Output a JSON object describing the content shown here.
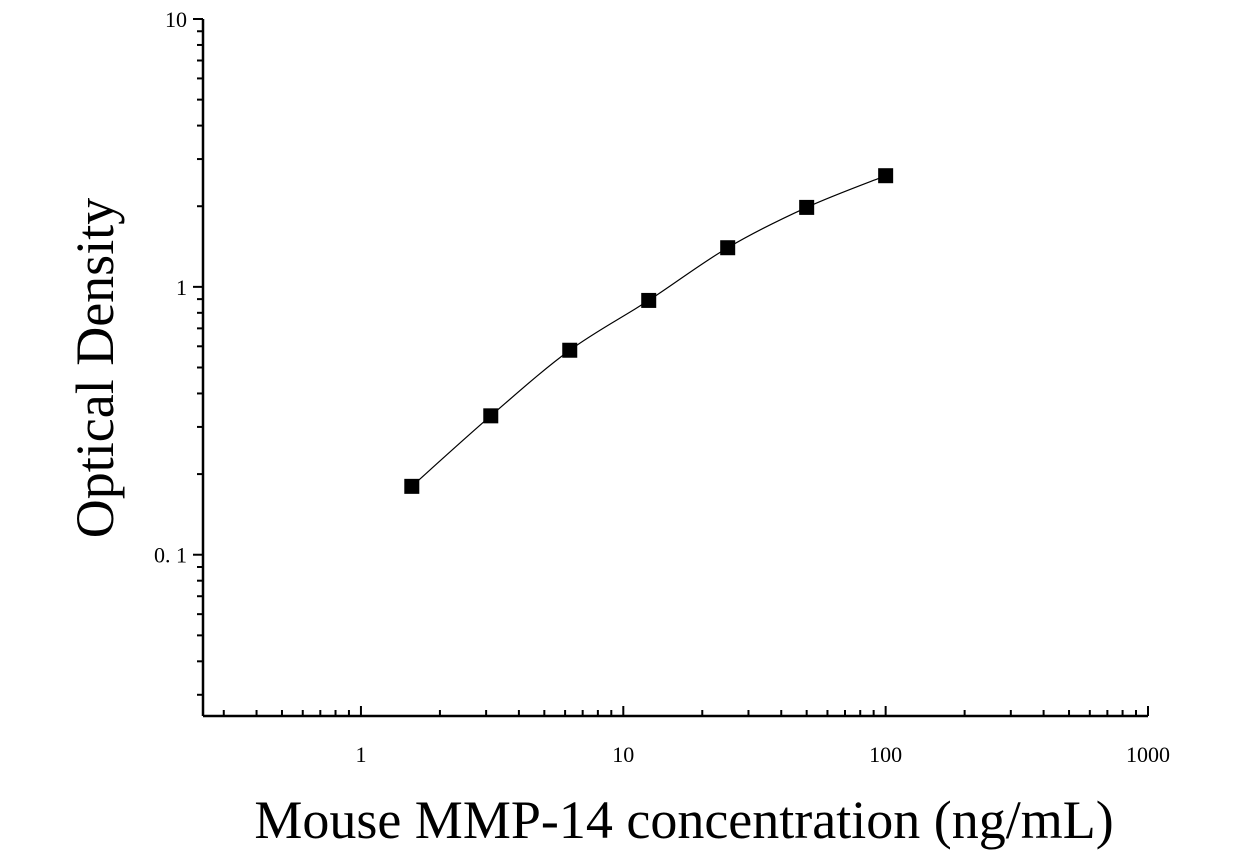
{
  "chart_data": {
    "type": "scatter",
    "title": "",
    "xlabel": "Mouse MMP-14 concentration (ng/mL)",
    "ylabel": "Optical Density",
    "x_scale": "log",
    "y_scale": "log",
    "xlim": [
      0.25,
      1000
    ],
    "ylim": [
      0.025,
      10
    ],
    "x_ticks": [
      {
        "value": 1,
        "label": "1"
      },
      {
        "value": 10,
        "label": "10"
      },
      {
        "value": 100,
        "label": "100"
      },
      {
        "value": 1000,
        "label": "1000"
      }
    ],
    "y_ticks": [
      {
        "value": 0.1,
        "label": "0. 1"
      },
      {
        "value": 1,
        "label": "1"
      },
      {
        "value": 10,
        "label": "10"
      }
    ],
    "grid": false,
    "legend": "none",
    "series": [
      {
        "x": [
          1.5625,
          3.125,
          6.25,
          12.5,
          25,
          50,
          100
        ],
        "y": [
          0.18,
          0.33,
          0.58,
          0.89,
          1.4,
          1.98,
          2.6
        ],
        "marker": "square",
        "fit_line": "smooth curve",
        "color": "#000000"
      }
    ]
  }
}
